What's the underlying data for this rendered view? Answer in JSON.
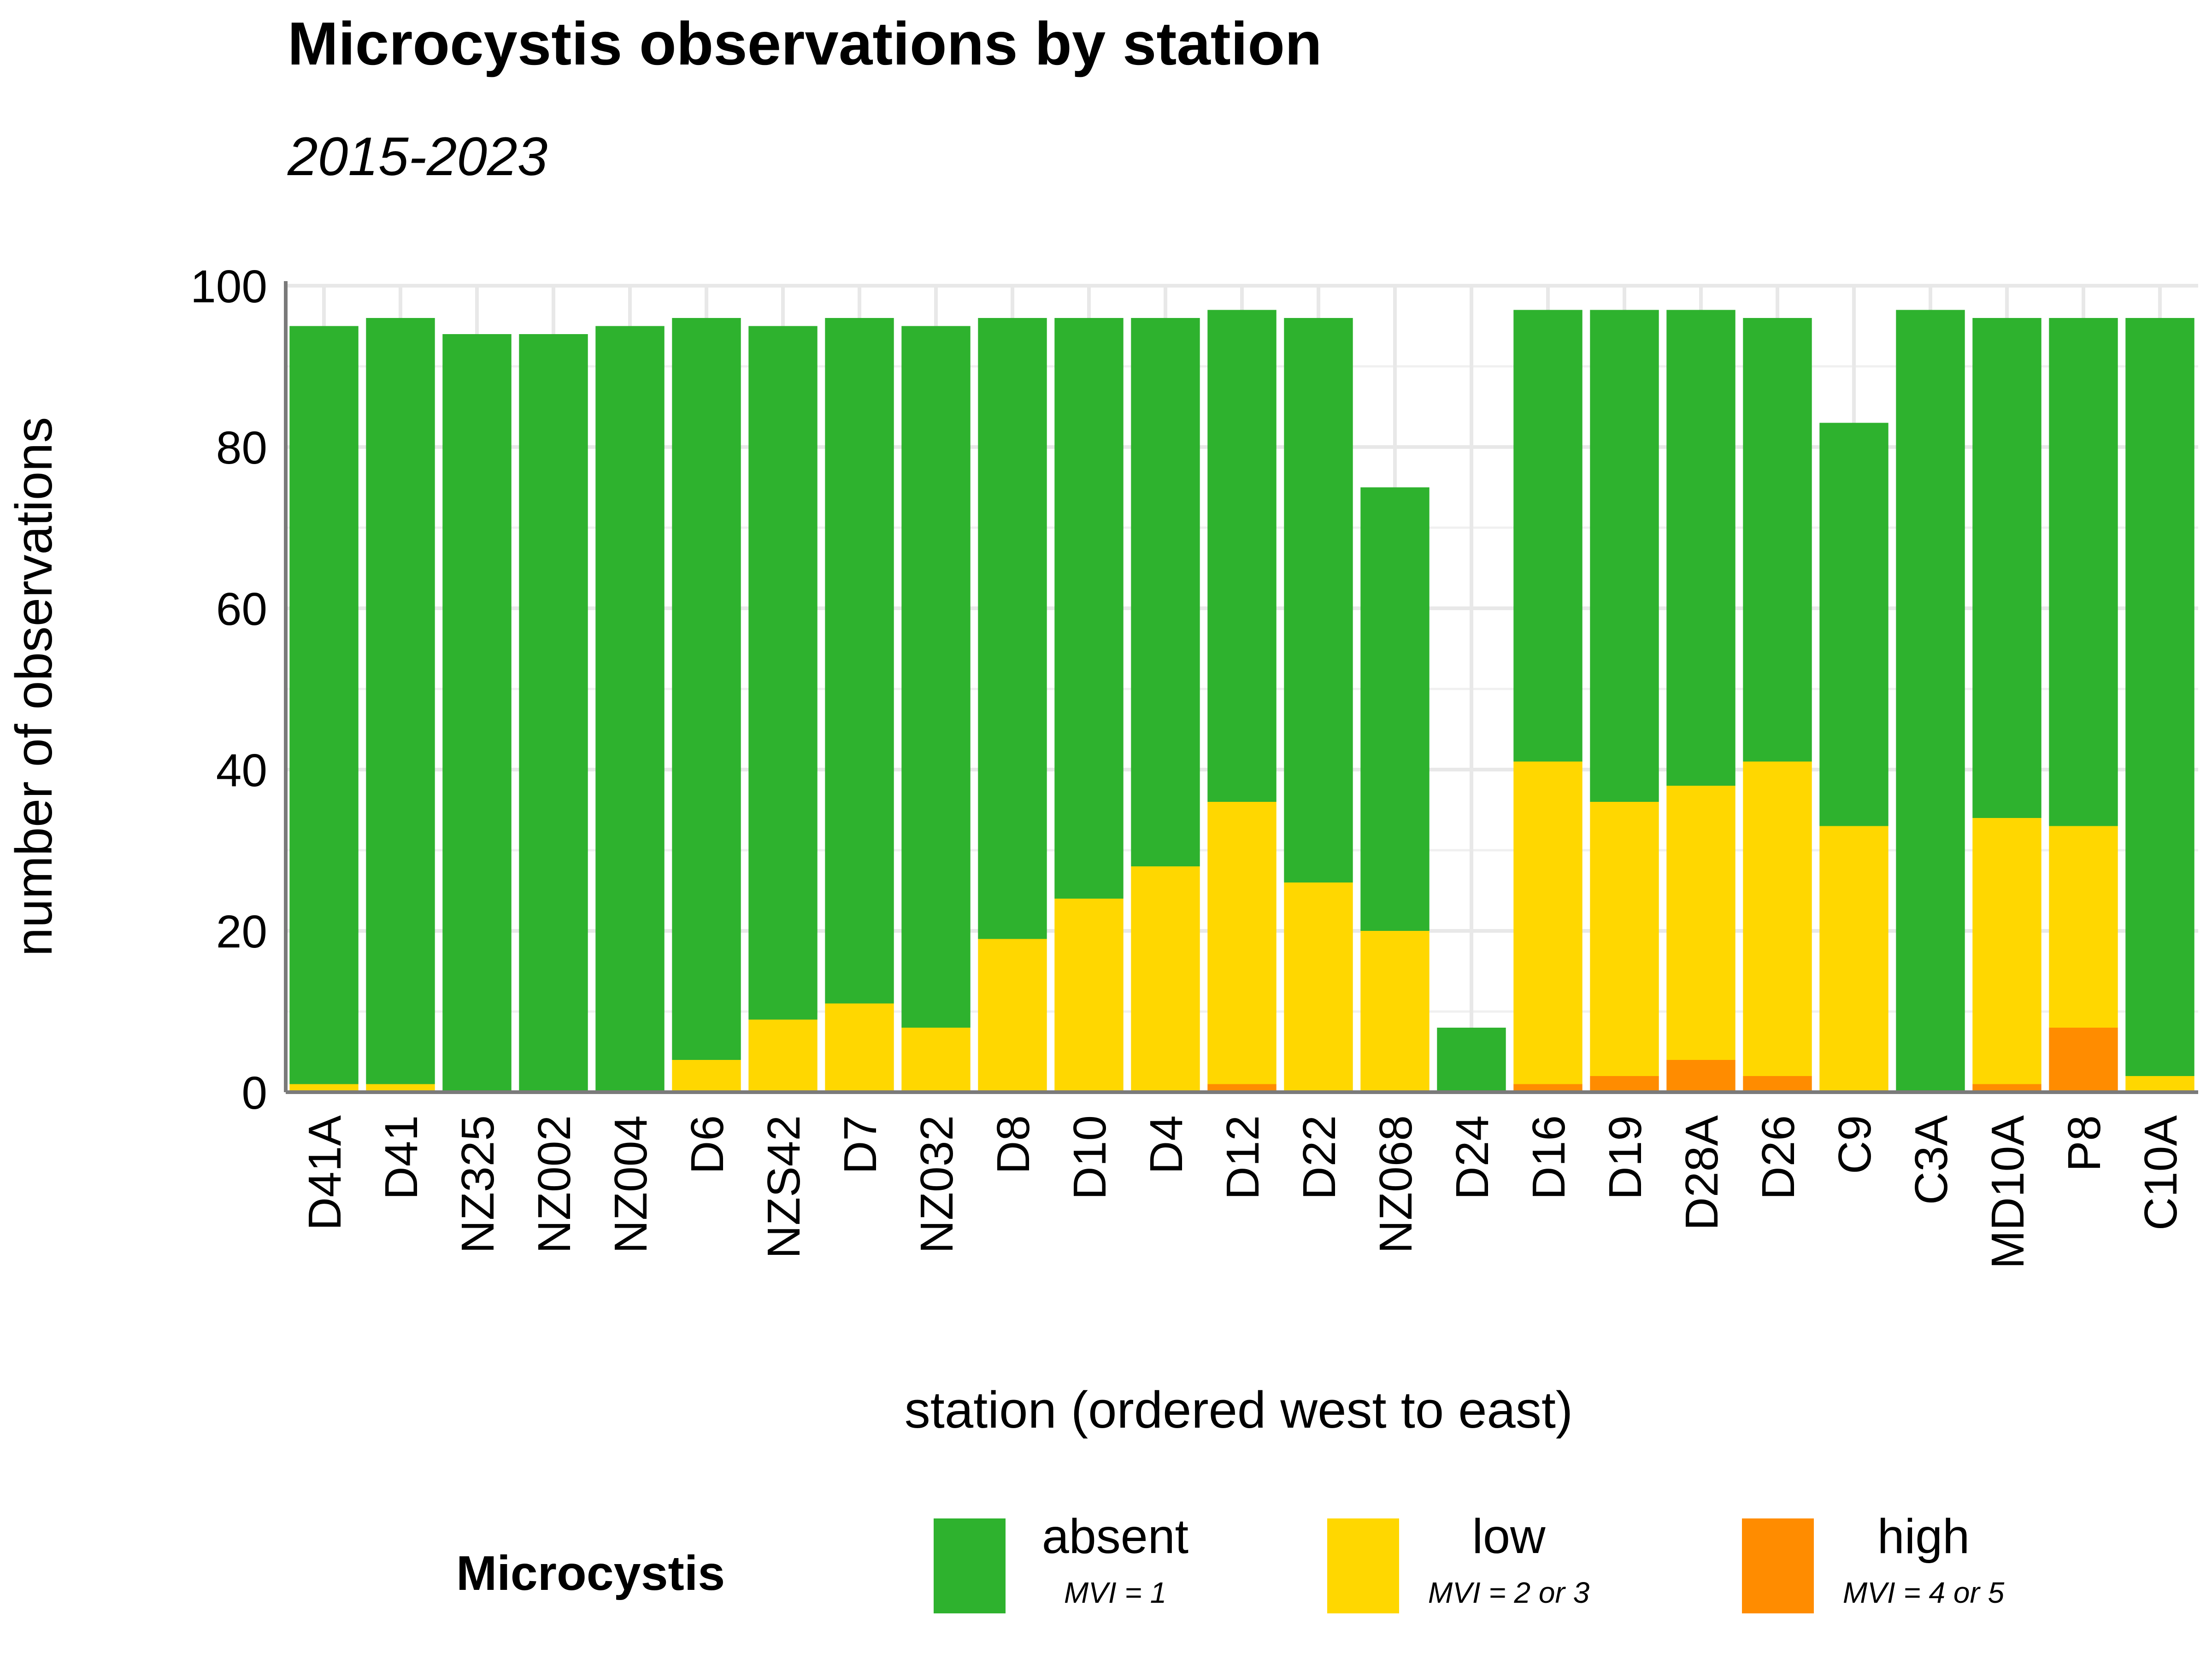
{
  "chart_data": {
    "type": "bar",
    "stacked": true,
    "title": "Microcystis observations by station",
    "subtitle": "2015-2023",
    "xlabel": "station (ordered west to east)",
    "ylabel": "number of observations",
    "ylim": [
      0,
      100
    ],
    "yticks": [
      "0",
      "20",
      "40",
      "60",
      "80",
      "100"
    ],
    "grid": true,
    "legend_position": "bottom",
    "legend_title": "Microcystis",
    "categories": [
      "D41A",
      "D41",
      "NZ325",
      "NZ002",
      "NZ004",
      "D6",
      "NZS42",
      "D7",
      "NZ032",
      "D8",
      "D10",
      "D4",
      "D12",
      "D22",
      "NZ068",
      "D24",
      "D16",
      "D19",
      "D28A",
      "D26",
      "C9",
      "C3A",
      "MD10A",
      "P8",
      "C10A"
    ],
    "series": [
      {
        "name": "high",
        "sublabel": "MVI = 4 or 5",
        "color": "#FF8C00",
        "values": [
          0,
          0,
          0,
          0,
          0,
          0,
          0,
          0,
          0,
          0,
          0,
          0,
          1,
          0,
          0,
          0,
          1,
          2,
          4,
          2,
          0,
          0,
          1,
          8,
          0
        ]
      },
      {
        "name": "low",
        "sublabel": "MVI = 2 or 3",
        "color": "#FFD700",
        "values": [
          1,
          1,
          0,
          0,
          0,
          4,
          9,
          11,
          8,
          19,
          24,
          28,
          35,
          26,
          20,
          0,
          40,
          34,
          34,
          39,
          33,
          0,
          33,
          25,
          2
        ]
      },
      {
        "name": "absent",
        "sublabel": "MVI = 1",
        "color": "#2EB22E",
        "values": [
          94,
          95,
          94,
          94,
          95,
          92,
          86,
          85,
          87,
          77,
          72,
          68,
          61,
          70,
          55,
          8,
          56,
          61,
          59,
          55,
          50,
          97,
          62,
          63,
          94
        ]
      }
    ],
    "legend_order": [
      "absent",
      "low",
      "high"
    ]
  }
}
